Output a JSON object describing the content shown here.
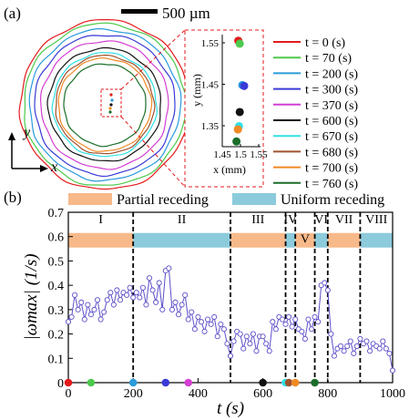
{
  "panel_a": {
    "label": "(a)",
    "scale_bar": "500 µm",
    "axis_y": "y",
    "axis_x": "x",
    "legend": [
      {
        "t": "t = 0 (s)",
        "color": "#e41a1c"
      },
      {
        "t": "t = 70 (s)",
        "color": "#4dc94d"
      },
      {
        "t": "t = 200 (s)",
        "color": "#2a9bdb"
      },
      {
        "t": "t = 300 (s)",
        "color": "#3a3ad6"
      },
      {
        "t": "t = 370 (s)",
        "color": "#d43fd4"
      },
      {
        "t": "t = 600 (s)",
        "color": "#111111"
      },
      {
        "t": "t = 670 (s)",
        "color": "#30e0e6"
      },
      {
        "t": "t = 680 (s)",
        "color": "#a0522d"
      },
      {
        "t": "t = 700 (s)",
        "color": "#f08a24"
      },
      {
        "t": "t = 760 (s)",
        "color": "#1b6e2a"
      }
    ],
    "inset": {
      "xlabel": "x (mm)",
      "ylabel": "y (mm)",
      "xticks": [
        "1.45",
        "1.5",
        "1.55"
      ],
      "yticks": [
        "1.55",
        "1.45",
        "1.35"
      ],
      "points": [
        {
          "x": 1.494,
          "y": 1.555,
          "color": "#e41a1c"
        },
        {
          "x": 1.498,
          "y": 1.548,
          "color": "#4dc94d"
        },
        {
          "x": 1.505,
          "y": 1.448,
          "color": "#2a9bdb"
        },
        {
          "x": 1.51,
          "y": 1.446,
          "color": "#3a3ad6"
        },
        {
          "x": 1.498,
          "y": 1.383,
          "color": "#111111"
        },
        {
          "x": 1.496,
          "y": 1.349,
          "color": "#30e0e6"
        },
        {
          "x": 1.493,
          "y": 1.341,
          "color": "#f08a24"
        },
        {
          "x": 1.489,
          "y": 1.312,
          "color": "#1b6e2a"
        }
      ]
    }
  },
  "panel_b": {
    "label": "(b)",
    "legend_partial": "Partial receding",
    "legend_uniform": "Uniform receding",
    "color_partial": "#f7b98a",
    "color_uniform": "#8ccbdc",
    "regions": [
      {
        "roman": "I",
        "start": 0,
        "end": 200
      },
      {
        "roman": "II",
        "start": 200,
        "end": 500
      },
      {
        "roman": "III",
        "start": 500,
        "end": 670
      },
      {
        "roman": "IV",
        "start": 670,
        "end": 700
      },
      {
        "roman": "V",
        "start": 700,
        "end": 760
      },
      {
        "roman": "VI",
        "start": 760,
        "end": 800
      },
      {
        "roman": "VII",
        "start": 800,
        "end": 900
      },
      {
        "roman": "VIII",
        "start": 900,
        "end": 1000
      }
    ],
    "boundaries": [
      200,
      500,
      670,
      700,
      760,
      800,
      900
    ],
    "bands": [
      {
        "start": 0,
        "end": 200,
        "kind": "partial"
      },
      {
        "start": 200,
        "end": 500,
        "kind": "uniform"
      },
      {
        "start": 500,
        "end": 670,
        "kind": "partial"
      },
      {
        "start": 670,
        "end": 700,
        "kind": "uniform"
      },
      {
        "start": 700,
        "end": 760,
        "kind": "partial"
      },
      {
        "start": 760,
        "end": 800,
        "kind": "uniform"
      },
      {
        "start": 800,
        "end": 900,
        "kind": "partial"
      },
      {
        "start": 900,
        "end": 1000,
        "kind": "uniform"
      }
    ],
    "marker_dots": [
      {
        "t": 0,
        "color": "#e41a1c"
      },
      {
        "t": 70,
        "color": "#4dc94d"
      },
      {
        "t": 200,
        "color": "#2a9bdb"
      },
      {
        "t": 300,
        "color": "#3a3ad6"
      },
      {
        "t": 370,
        "color": "#d43fd4"
      },
      {
        "t": 600,
        "color": "#111111"
      },
      {
        "t": 670,
        "color": "#30e0e6"
      },
      {
        "t": 680,
        "color": "#a0522d"
      },
      {
        "t": 700,
        "color": "#f08a24"
      },
      {
        "t": 760,
        "color": "#1b6e2a"
      }
    ]
  },
  "chart_data": {
    "type": "line",
    "xlabel": "t (s)",
    "ylabel": "|ωmax| (1/s)",
    "xlim": [
      0,
      1000
    ],
    "ylim": [
      0,
      0.7
    ],
    "xticks": [
      0,
      200,
      400,
      600,
      800,
      1000
    ],
    "yticks": [
      0,
      0.1,
      0.2,
      0.3,
      0.4,
      0.5,
      0.6,
      0.7
    ],
    "series_color": "#5b4fc9",
    "x": [
      0,
      10,
      20,
      30,
      40,
      50,
      60,
      70,
      80,
      90,
      100,
      110,
      120,
      130,
      140,
      150,
      160,
      170,
      180,
      190,
      200,
      210,
      220,
      230,
      240,
      250,
      260,
      270,
      280,
      290,
      300,
      310,
      320,
      330,
      340,
      350,
      360,
      370,
      380,
      390,
      400,
      410,
      420,
      430,
      440,
      450,
      460,
      470,
      480,
      490,
      500,
      510,
      520,
      530,
      540,
      550,
      560,
      570,
      580,
      590,
      600,
      610,
      620,
      630,
      640,
      650,
      660,
      670,
      680,
      690,
      700,
      710,
      720,
      730,
      740,
      750,
      760,
      770,
      780,
      790,
      800,
      810,
      820,
      830,
      840,
      850,
      860,
      870,
      880,
      890,
      900,
      910,
      920,
      930,
      940,
      950,
      960,
      970,
      980,
      990,
      1000
    ],
    "y": [
      0.25,
      0.27,
      0.36,
      0.3,
      0.33,
      0.26,
      0.32,
      0.28,
      0.3,
      0.34,
      0.26,
      0.29,
      0.34,
      0.37,
      0.32,
      0.38,
      0.34,
      0.37,
      0.36,
      0.39,
      0.35,
      0.37,
      0.35,
      0.39,
      0.32,
      0.43,
      0.38,
      0.33,
      0.41,
      0.3,
      0.46,
      0.47,
      0.3,
      0.33,
      0.28,
      0.32,
      0.36,
      0.26,
      0.29,
      0.22,
      0.27,
      0.25,
      0.21,
      0.26,
      0.24,
      0.27,
      0.19,
      0.24,
      0.22,
      0.16,
      0.11,
      0.17,
      0.21,
      0.2,
      0.14,
      0.19,
      0.16,
      0.2,
      0.13,
      0.19,
      0.19,
      0.16,
      0.13,
      0.25,
      0.22,
      0.27,
      0.26,
      0.24,
      0.27,
      0.23,
      0.26,
      0.22,
      0.21,
      0.18,
      0.26,
      0.22,
      0.27,
      0.25,
      0.4,
      0.41,
      0.38,
      0.2,
      0.11,
      0.14,
      0.15,
      0.13,
      0.15,
      0.17,
      0.12,
      0.15,
      0.18,
      0.16,
      0.17,
      0.13,
      0.16,
      0.15,
      0.14,
      0.17,
      0.14,
      0.12,
      0.05
    ]
  }
}
